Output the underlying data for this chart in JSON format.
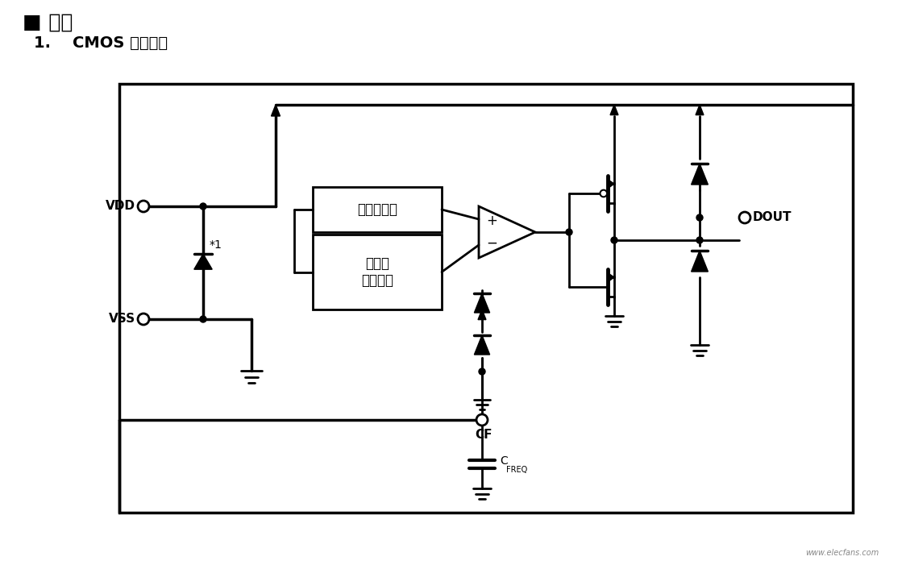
{
  "title_main": "■ 框图",
  "subtitle": "1.    CMOS 输出产品",
  "bg_color": "#ffffff",
  "line_color": "#000000",
  "label_vdd": "VDD",
  "label_vss": "VSS",
  "label_dout": "DOUT",
  "label_cf": "CF",
  "label_cfreq": "C",
  "label_cfreq_sub": "FREQ",
  "label_temp_sensor": "温度传感器",
  "label_triangle_wave": "三角波\n发生电路",
  "label_note": "*1",
  "plus_sign": "+",
  "minus_sign": "−"
}
